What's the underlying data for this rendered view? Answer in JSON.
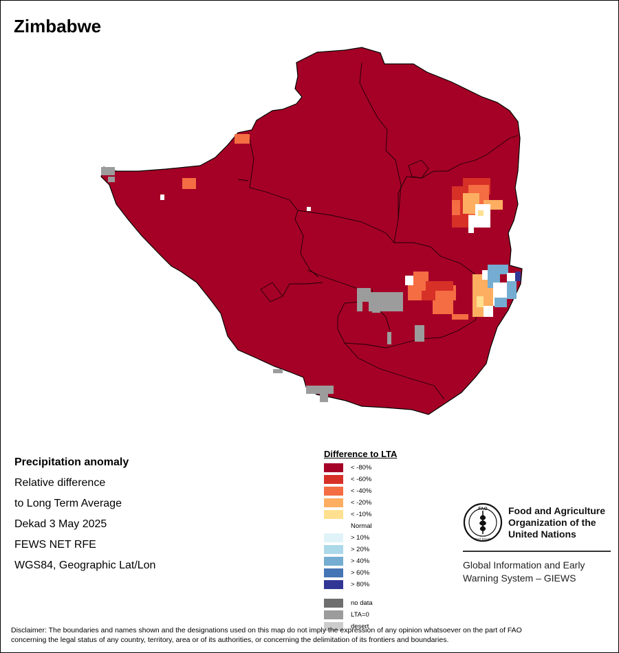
{
  "map": {
    "title": "Zimbabwe",
    "fill_color": "#A50026"
  },
  "info": {
    "heading": "Precipitation anomaly",
    "lines": [
      "Relative difference",
      "to Long Term Average",
      "Dekad 3 May 2025",
      "FEWS NET RFE",
      "WGS84, Geographic Lat/Lon"
    ]
  },
  "legend": {
    "title": "Difference to LTA",
    "items": [
      {
        "label": "< -80%",
        "color": "#A50026"
      },
      {
        "label": "< -60%",
        "color": "#D73027"
      },
      {
        "label": "< -40%",
        "color": "#F46D43"
      },
      {
        "label": "< -20%",
        "color": "#FDAE61"
      },
      {
        "label": "< -10%",
        "color": "#FEE090"
      },
      {
        "label": "Normal",
        "color": "#FFFFFF"
      },
      {
        "label": "> 10%",
        "color": "#E0F3F8"
      },
      {
        "label": "> 20%",
        "color": "#ABD9E9"
      },
      {
        "label": "> 40%",
        "color": "#74ADD1"
      },
      {
        "label": "> 60%",
        "color": "#4575B4"
      },
      {
        "label": "> 80%",
        "color": "#313695"
      }
    ],
    "extra_items": [
      {
        "label": "no data",
        "color": "#6E6E6E"
      },
      {
        "label": "LTA=0",
        "color": "#9C9C9C"
      },
      {
        "label": "desert",
        "color": "#CCCCCC"
      }
    ]
  },
  "fao": {
    "org_line1": "Food and Agriculture",
    "org_line2": "Organization of the",
    "org_line3": "United Nations",
    "logo_letters": "FAO",
    "logo_motto": "FIAT PANIS",
    "giews_line1": "Global Information and Early",
    "giews_line2": "Warning System – GIEWS"
  },
  "disclaimer": {
    "line1": "Disclaimer: The boundaries and names shown and the designations used on this map do not imply the expression of any opinion whatsoever on the part of FAO",
    "line2": "concerning the legal status of any country, territory, area or of its authorities, or concerning the delimitation of its frontiers and boundaries."
  }
}
